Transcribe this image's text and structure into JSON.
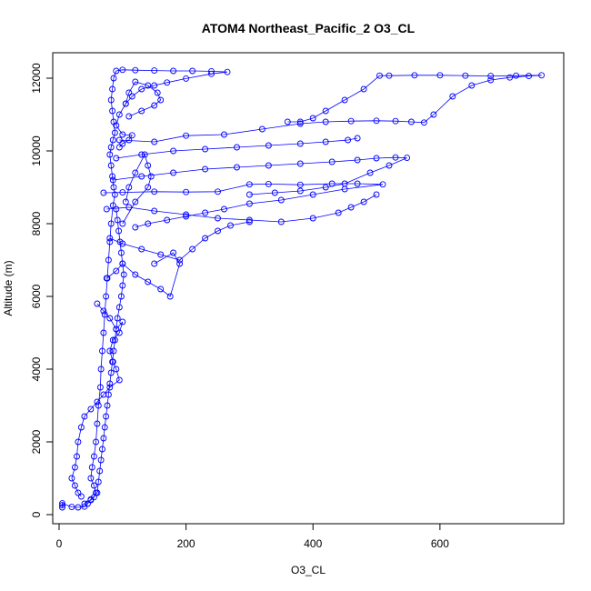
{
  "chart_data": {
    "type": "scatter",
    "title": "ATOM4 Northeast_Pacific_2 O3_CL",
    "xlabel": "O3_CL",
    "ylabel": "Altitude (m)",
    "xlim": [
      -10,
      795
    ],
    "ylim": [
      -250,
      12700
    ],
    "xticks": [
      0,
      200,
      400,
      600
    ],
    "yticks": [
      0,
      2000,
      4000,
      6000,
      8000,
      10000,
      12000
    ],
    "grid": false,
    "legend": "none",
    "marker": "open-circle",
    "connect_points": true,
    "color": "#0000ff",
    "series": [
      {
        "points": [
          [
            5,
            200
          ],
          [
            5,
            260
          ],
          [
            5,
            310
          ],
          [
            20,
            210
          ],
          [
            30,
            200
          ],
          [
            40,
            220
          ],
          [
            45,
            300
          ],
          [
            50,
            420
          ],
          [
            55,
            480
          ],
          [
            58,
            600
          ],
          [
            55,
            800
          ],
          [
            50,
            1000
          ],
          [
            52,
            1300
          ],
          [
            55,
            1600
          ],
          [
            58,
            2000
          ],
          [
            60,
            2500
          ],
          [
            62,
            3000
          ],
          [
            65,
            3500
          ],
          [
            66,
            4000
          ],
          [
            68,
            4500
          ],
          [
            70,
            5000
          ],
          [
            72,
            5500
          ],
          [
            74,
            6000
          ],
          [
            76,
            6500
          ],
          [
            78,
            7000
          ],
          [
            80,
            7500
          ],
          [
            82,
            8000
          ],
          [
            85,
            8500
          ],
          [
            88,
            8800
          ],
          [
            86,
            9000
          ],
          [
            84,
            9300
          ],
          [
            82,
            9600
          ],
          [
            80,
            9900
          ],
          [
            82,
            10100
          ],
          [
            85,
            10300
          ],
          [
            88,
            10500
          ],
          [
            86,
            10800
          ],
          [
            84,
            11100
          ],
          [
            82,
            11400
          ],
          [
            84,
            11700
          ],
          [
            86,
            12000
          ],
          [
            90,
            12200
          ],
          [
            100,
            12230
          ],
          [
            120,
            12220
          ],
          [
            150,
            12210
          ],
          [
            180,
            12200
          ],
          [
            210,
            12200
          ],
          [
            240,
            12190
          ],
          [
            265,
            12170
          ],
          [
            240,
            12120
          ],
          [
            200,
            11990
          ],
          [
            170,
            11880
          ],
          [
            150,
            11800
          ],
          [
            130,
            11700
          ],
          [
            115,
            11500
          ],
          [
            105,
            11300
          ],
          [
            95,
            11000
          ],
          [
            90,
            10700
          ],
          [
            100,
            10450
          ],
          [
            115,
            10430
          ],
          [
            110,
            10300
          ],
          [
            100,
            10200
          ],
          [
            95,
            10100
          ]
        ]
      },
      {
        "points": [
          [
            95,
            10300
          ],
          [
            150,
            10250
          ],
          [
            200,
            10420
          ],
          [
            260,
            10450
          ],
          [
            320,
            10600
          ],
          [
            380,
            10750
          ],
          [
            420,
            10800
          ],
          [
            460,
            10820
          ],
          [
            500,
            10830
          ],
          [
            530,
            10820
          ],
          [
            555,
            10800
          ],
          [
            575,
            10780
          ],
          [
            590,
            11000
          ],
          [
            620,
            11500
          ],
          [
            650,
            11800
          ],
          [
            680,
            11950
          ],
          [
            710,
            12020
          ],
          [
            740,
            12060
          ],
          [
            760,
            12080
          ],
          [
            720,
            12070
          ],
          [
            680,
            12060
          ],
          [
            640,
            12070
          ],
          [
            600,
            12080
          ],
          [
            560,
            12080
          ],
          [
            520,
            12070
          ],
          [
            505,
            12070
          ],
          [
            480,
            11700
          ],
          [
            450,
            11400
          ],
          [
            420,
            11100
          ],
          [
            400,
            10900
          ],
          [
            380,
            10800
          ],
          [
            360,
            10800
          ]
        ]
      },
      {
        "points": [
          [
            90,
            9800
          ],
          [
            130,
            9900
          ],
          [
            180,
            10000
          ],
          [
            230,
            10050
          ],
          [
            280,
            10100
          ],
          [
            330,
            10150
          ],
          [
            380,
            10200
          ],
          [
            420,
            10250
          ],
          [
            455,
            10300
          ],
          [
            470,
            10350
          ]
        ]
      },
      {
        "points": [
          [
            85,
            9200
          ],
          [
            130,
            9300
          ],
          [
            180,
            9400
          ],
          [
            230,
            9500
          ],
          [
            280,
            9550
          ],
          [
            330,
            9600
          ],
          [
            380,
            9650
          ],
          [
            430,
            9700
          ],
          [
            470,
            9750
          ],
          [
            500,
            9800
          ],
          [
            530,
            9820
          ],
          [
            548,
            9810
          ],
          [
            520,
            9600
          ],
          [
            490,
            9400
          ],
          [
            450,
            9100
          ],
          [
            420,
            9000
          ],
          [
            380,
            8900
          ],
          [
            340,
            8850
          ],
          [
            300,
            8800
          ]
        ]
      },
      {
        "points": [
          [
            70,
            8850
          ],
          [
            100,
            8860
          ],
          [
            150,
            8880
          ],
          [
            200,
            8870
          ],
          [
            250,
            8880
          ],
          [
            300,
            9080
          ],
          [
            330,
            9090
          ],
          [
            380,
            9070
          ],
          [
            430,
            9100
          ],
          [
            470,
            9100
          ],
          [
            510,
            9080
          ],
          [
            450,
            8950
          ],
          [
            400,
            8800
          ],
          [
            350,
            8650
          ],
          [
            300,
            8550
          ],
          [
            260,
            8400
          ],
          [
            230,
            8300
          ],
          [
            200,
            8200
          ],
          [
            170,
            8100
          ],
          [
            140,
            8000
          ],
          [
            120,
            7900
          ]
        ]
      },
      {
        "points": [
          [
            75,
            8400
          ],
          [
            110,
            8450
          ],
          [
            150,
            8350
          ],
          [
            200,
            8250
          ],
          [
            250,
            8150
          ],
          [
            300,
            8100
          ],
          [
            350,
            8050
          ],
          [
            400,
            8150
          ],
          [
            440,
            8300
          ],
          [
            460,
            8450
          ],
          [
            480,
            8600
          ],
          [
            500,
            8800
          ]
        ]
      },
      {
        "points": [
          [
            80,
            7600
          ],
          [
            100,
            7450
          ],
          [
            130,
            7300
          ],
          [
            160,
            7150
          ],
          [
            190,
            7000
          ],
          [
            210,
            7300
          ],
          [
            230,
            7600
          ],
          [
            250,
            7800
          ],
          [
            270,
            7950
          ],
          [
            300,
            8050
          ]
        ]
      },
      {
        "points": [
          [
            75,
            6500
          ],
          [
            90,
            6700
          ],
          [
            100,
            6900
          ],
          [
            120,
            6600
          ],
          [
            140,
            6400
          ],
          [
            160,
            6200
          ],
          [
            175,
            6000
          ],
          [
            190,
            6900
          ],
          [
            180,
            7200
          ],
          [
            150,
            6900
          ]
        ]
      },
      {
        "points": [
          [
            60,
            5800
          ],
          [
            70,
            5600
          ],
          [
            80,
            5400
          ],
          [
            90,
            5100
          ],
          [
            100,
            5300
          ],
          [
            95,
            5000
          ],
          [
            85,
            4800
          ],
          [
            80,
            4500
          ],
          [
            85,
            4200
          ],
          [
            90,
            4000
          ],
          [
            95,
            3700
          ],
          [
            80,
            3500
          ],
          [
            70,
            3300
          ],
          [
            60,
            3100
          ],
          [
            50,
            2900
          ],
          [
            40,
            2700
          ],
          [
            35,
            2400
          ],
          [
            30,
            2000
          ],
          [
            28,
            1600
          ],
          [
            25,
            1300
          ],
          [
            20,
            1000
          ],
          [
            25,
            800
          ],
          [
            30,
            600
          ],
          [
            35,
            500
          ]
        ]
      },
      {
        "points": [
          [
            40,
            300
          ],
          [
            50,
            400
          ],
          [
            60,
            600
          ],
          [
            62,
            900
          ],
          [
            64,
            1200
          ],
          [
            66,
            1500
          ],
          [
            68,
            1800
          ],
          [
            70,
            2100
          ],
          [
            72,
            2400
          ],
          [
            74,
            2700
          ],
          [
            76,
            3000
          ],
          [
            78,
            3300
          ],
          [
            80,
            3600
          ],
          [
            82,
            3900
          ],
          [
            84,
            4200
          ],
          [
            86,
            4500
          ],
          [
            88,
            4800
          ],
          [
            90,
            5100
          ],
          [
            92,
            5400
          ],
          [
            95,
            5700
          ],
          [
            98,
            6000
          ],
          [
            100,
            6300
          ],
          [
            102,
            6600
          ],
          [
            100,
            6900
          ],
          [
            98,
            7200
          ],
          [
            96,
            7500
          ],
          [
            94,
            7800
          ],
          [
            92,
            8100
          ],
          [
            90,
            8400
          ]
        ]
      },
      {
        "points": [
          [
            100,
            8000
          ],
          [
            120,
            8600
          ],
          [
            140,
            9000
          ],
          [
            145,
            9300
          ],
          [
            140,
            9600
          ],
          [
            135,
            9900
          ],
          [
            120,
            9400
          ],
          [
            110,
            9000
          ],
          [
            105,
            8600
          ]
        ]
      },
      {
        "points": [
          [
            110,
            10950
          ],
          [
            130,
            11100
          ],
          [
            150,
            11250
          ],
          [
            160,
            11400
          ],
          [
            155,
            11600
          ],
          [
            140,
            11800
          ],
          [
            120,
            11900
          ],
          [
            110,
            11600
          ],
          [
            105,
            11300
          ]
        ]
      }
    ]
  }
}
